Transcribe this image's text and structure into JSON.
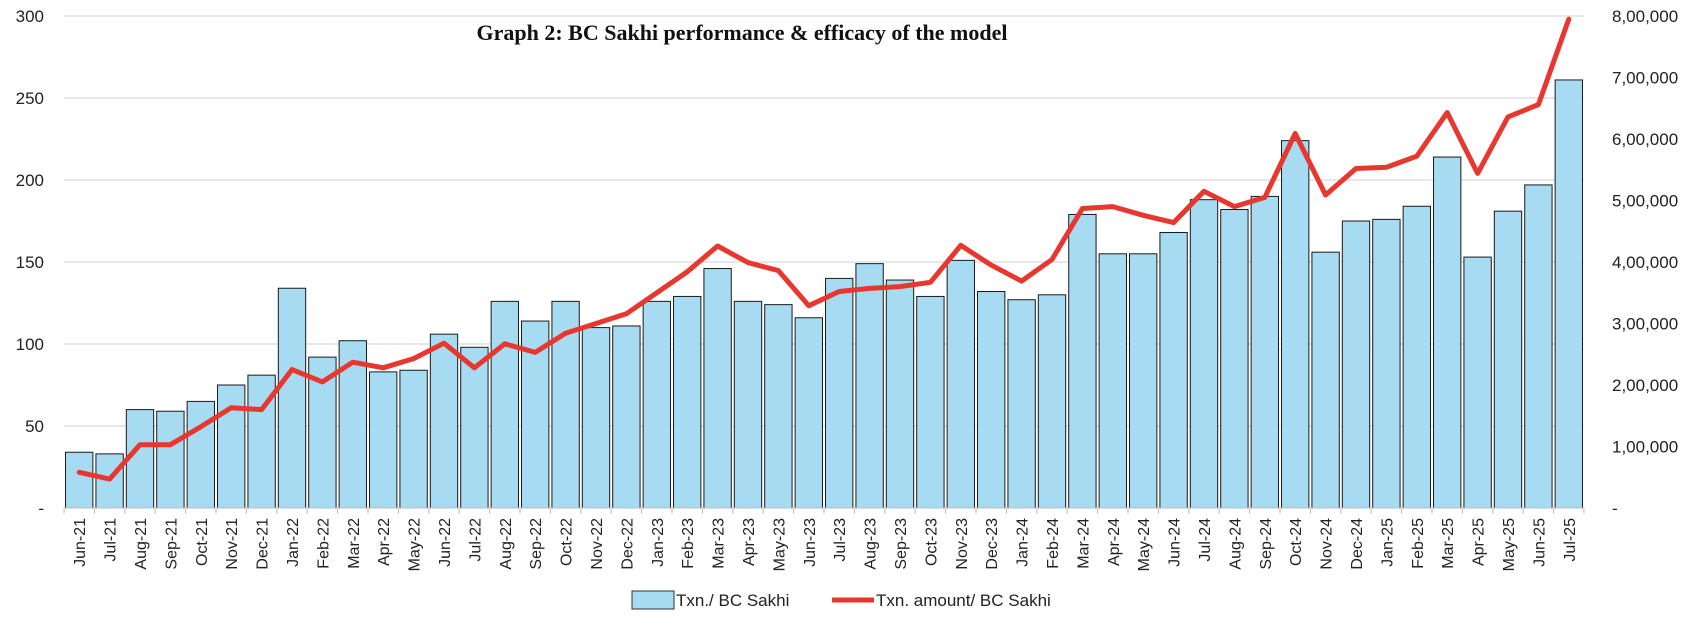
{
  "chart_data": {
    "type": "bar",
    "title": "Graph 2: BC Sakhi performance & efficacy of the model",
    "categories": [
      "Jun-21",
      "Jul-21",
      "Aug-21",
      "Sep-21",
      "Oct-21",
      "Nov-21",
      "Dec-21",
      "Jan-22",
      "Feb-22",
      "Mar-22",
      "Apr-22",
      "May-22",
      "Jun-22",
      "Jul-22",
      "Aug-22",
      "Sep-22",
      "Oct-22",
      "Nov-22",
      "Dec-22",
      "Jan-23",
      "Feb-23",
      "Mar-23",
      "Apr-23",
      "May-23",
      "Jun-23",
      "Jul-23",
      "Aug-23",
      "Sep-23",
      "Oct-23",
      "Nov-23",
      "Dec-23",
      "Jan-24",
      "Feb-24",
      "Mar-24",
      "Apr-24",
      "May-24",
      "Jun-24",
      "Jul-24",
      "Aug-24",
      "Sep-24",
      "Oct-24",
      "Nov-24",
      "Dec-24",
      "Jan-25",
      "Feb-25",
      "Mar-25",
      "Apr-25",
      "May-25",
      "Jun-25",
      "Jul-25"
    ],
    "series": [
      {
        "name": "Txn./ BC Sakhi",
        "type": "bar",
        "axis": "left",
        "color": "#a6dbf2",
        "values": [
          34,
          33,
          60,
          59,
          65,
          75,
          81,
          134,
          92,
          102,
          83,
          84,
          106,
          98,
          126,
          114,
          126,
          110,
          111,
          126,
          129,
          146,
          126,
          124,
          116,
          140,
          149,
          139,
          129,
          151,
          132,
          127,
          130,
          179,
          155,
          155,
          168,
          188,
          182,
          190,
          224,
          156,
          175,
          176,
          184,
          214,
          153,
          181,
          197,
          261
        ]
      },
      {
        "name": "Txn. amount/ BC Sakhi",
        "type": "line",
        "axis": "right",
        "color": "#e8372f",
        "values": [
          58000,
          47000,
          103000,
          103000,
          132000,
          163000,
          160000,
          225000,
          205000,
          237000,
          228000,
          243000,
          268000,
          228000,
          267000,
          253000,
          284000,
          300000,
          316000,
          350000,
          384000,
          426000,
          399000,
          386000,
          329000,
          352000,
          357000,
          360000,
          367000,
          427000,
          395000,
          369000,
          404000,
          487000,
          490000,
          476000,
          464000,
          515000,
          490000,
          505000,
          609000,
          509000,
          552000,
          554000,
          572000,
          643000,
          544000,
          636000,
          656000,
          795000
        ]
      }
    ],
    "y_left": {
      "ylim": [
        0,
        300
      ],
      "ticks": [
        0,
        50,
        100,
        150,
        200,
        250,
        300
      ],
      "tick_labels": [
        "-",
        "50",
        "100",
        "150",
        "200",
        "250",
        "300"
      ]
    },
    "y_right": {
      "ylim": [
        0,
        800000
      ],
      "ticks": [
        0,
        100000,
        200000,
        300000,
        400000,
        500000,
        600000,
        700000,
        800000
      ],
      "tick_labels": [
        "-",
        "1,00,000",
        "2,00,000",
        "3,00,000",
        "4,00,000",
        "5,00,000",
        "6,00,000",
        "7,00,000",
        "8,00,000"
      ]
    },
    "grid": true,
    "legend_position": "bottom-center",
    "xlabel": "",
    "ylabel": ""
  }
}
